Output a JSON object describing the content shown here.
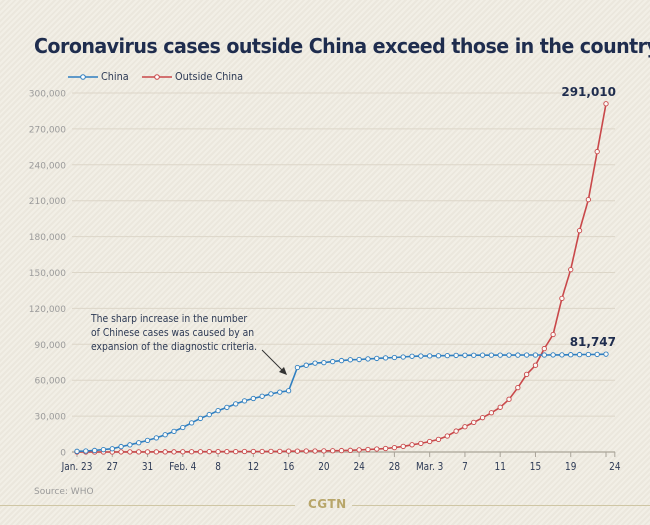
{
  "header": {
    "title": "Coronavirus cases outside China exceed those in the country"
  },
  "legend": [
    {
      "name": "China",
      "color": "#2f7fc1"
    },
    {
      "name": "Outside China",
      "color": "#c9484a"
    }
  ],
  "source": "Source: WHO",
  "brand": "CGTN",
  "chart_data": {
    "type": "line",
    "title": "Coronavirus cases outside China exceed those in the country",
    "xlabel": "",
    "ylabel": "",
    "ylim": [
      0,
      300000
    ],
    "yticks": [
      0,
      30000,
      60000,
      90000,
      120000,
      150000,
      180000,
      210000,
      240000,
      270000,
      300000
    ],
    "ytick_labels": [
      "0",
      "30,000",
      "60,000",
      "90,000",
      "120,000",
      "150,000",
      "180,000",
      "210,000",
      "240,000",
      "270,000",
      "300,000"
    ],
    "grid": true,
    "legend_position": "top-left",
    "x_start": "Jan. 23",
    "x_days": 61,
    "xticks": [
      {
        "day": 0,
        "label": "Jan. 23"
      },
      {
        "day": 4,
        "label": "27"
      },
      {
        "day": 8,
        "label": "31"
      },
      {
        "day": 12,
        "label": "Feb. 4"
      },
      {
        "day": 16,
        "label": "8"
      },
      {
        "day": 20,
        "label": "12"
      },
      {
        "day": 24,
        "label": "16"
      },
      {
        "day": 28,
        "label": "20"
      },
      {
        "day": 32,
        "label": "24"
      },
      {
        "day": 36,
        "label": "28"
      },
      {
        "day": 40,
        "label": "Mar. 3"
      },
      {
        "day": 44,
        "label": "7"
      },
      {
        "day": 48,
        "label": "11"
      },
      {
        "day": 52,
        "label": "15"
      },
      {
        "day": 56,
        "label": "19"
      },
      {
        "day": 60,
        "label": ""
      },
      {
        "day": 61,
        "label": "24"
      }
    ],
    "series": [
      {
        "name": "China",
        "color": "#2f7fc1",
        "end_label": "81,747",
        "values": [
          571,
          830,
          1297,
          1985,
          2741,
          4537,
          5997,
          7736,
          9720,
          11821,
          14411,
          17238,
          20471,
          24363,
          28060,
          31211,
          34598,
          37251,
          40235,
          42708,
          44730,
          46550,
          48548,
          50054,
          51174,
          70635,
          72528,
          74280,
          74675,
          75569,
          76392,
          77042,
          77262,
          77780,
          78191,
          78630,
          78961,
          79394,
          79968,
          80174,
          80304,
          80422,
          80565,
          80711,
          80813,
          80859,
          80904,
          80924,
          80955,
          80981,
          80991,
          81021,
          81048,
          81077,
          81116,
          81174,
          81300,
          81416,
          81498,
          81601,
          81747
        ]
      },
      {
        "name": "Outside China",
        "color": "#c9484a",
        "end_label": "291,010",
        "values": [
          9,
          11,
          23,
          29,
          37,
          56,
          68,
          82,
          106,
          132,
          146,
          153,
          159,
          191,
          216,
          270,
          288,
          307,
          319,
          395,
          441,
          447,
          505,
          526,
          683,
          691,
          794,
          804,
          924,
          1073,
          1200,
          1402,
          1769,
          2069,
          2459,
          2918,
          3664,
          4691,
          6009,
          7169,
          8774,
          10566,
          13353,
          17481,
          21110,
          24727,
          28674,
          32778,
          37364,
          44067,
          53767,
          64838,
          72469,
          86434,
          98192,
          128343,
          152428,
          184976,
          210910,
          251052,
          291010
        ]
      }
    ],
    "annotation": "The sharp increase in the number of Chinese cases was caused by an expansion of the diagnostic criteria."
  }
}
